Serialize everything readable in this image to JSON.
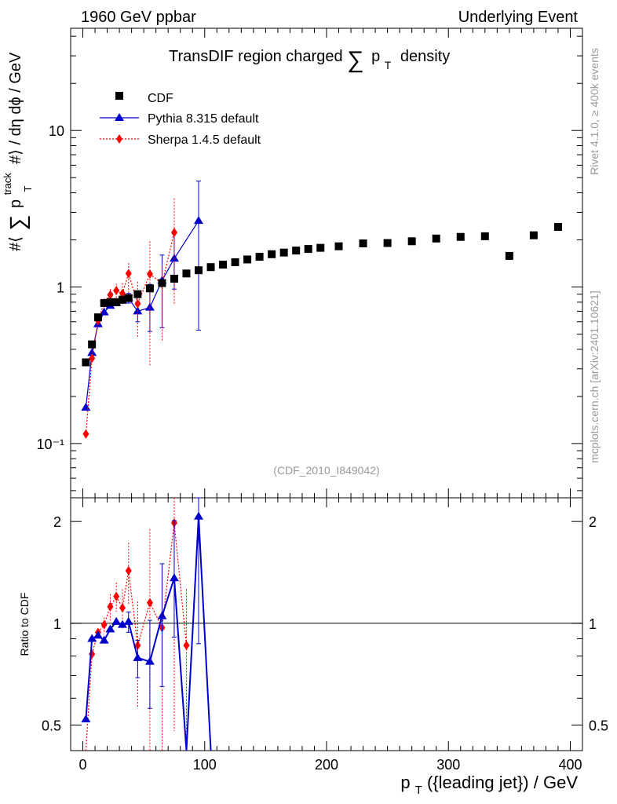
{
  "header": {
    "left": "1960 GeV ppbar",
    "right": "Underlying Event"
  },
  "side": {
    "rivet": "Rivet 4.1.0, ≥ 400k events",
    "mcplots": "mcplots.cern.ch [arXiv:2401.10621]"
  },
  "chart_data": [
    {
      "type": "scatter",
      "title_prefix": "TransDIF region charged",
      "title_sum": "∑",
      "title_p": "p",
      "title_sub": "T",
      "title_suffix": "density",
      "ylabel": "#⟨ ∑ p_T^track #⟩ / dη dϕ / GeV",
      "ylabel_pre": "#⟨",
      "ylabel_sum": "∑",
      "ylabel_p": "p",
      "ylabel_sup": "track",
      "ylabel_sub": "T",
      "ylabel_post": "#⟩ / dη dϕ / GeV",
      "yscale": "log",
      "ylim": [
        0.045,
        45
      ],
      "xlim": [
        -10,
        410
      ],
      "yticklabels": [
        "10",
        "1",
        "10⁻¹"
      ],
      "analysis": "(CDF_2010_I849042)",
      "legend": [
        "CDF",
        "Pythia 8.315 default",
        "Sherpa 1.4.5 default"
      ],
      "series": [
        {
          "name": "CDF",
          "color": "#000000",
          "marker": "square",
          "x": [
            2.5,
            7.5,
            12.5,
            17.5,
            22.5,
            27.5,
            32.5,
            37.5,
            45,
            55,
            65,
            75,
            85,
            95,
            105,
            115,
            125,
            135,
            145,
            155,
            165,
            175,
            185,
            195,
            210,
            230,
            250,
            270,
            290,
            310,
            330,
            350,
            370,
            390
          ],
          "y": [
            0.33,
            0.43,
            0.64,
            0.79,
            0.8,
            0.8,
            0.83,
            0.85,
            0.9,
            0.98,
            1.06,
            1.13,
            1.22,
            1.28,
            1.34,
            1.39,
            1.44,
            1.5,
            1.56,
            1.62,
            1.66,
            1.71,
            1.75,
            1.78,
            1.82,
            1.9,
            1.91,
            1.96,
            2.04,
            2.09,
            2.11,
            1.58,
            2.14,
            2.42
          ]
        },
        {
          "name": "Pythia 8.315 default",
          "color": "#0000cc",
          "marker": "triangle",
          "x": [
            2.5,
            7.5,
            12.5,
            17.5,
            22.5,
            27.5,
            32.5,
            37.5,
            45,
            55,
            65,
            75,
            95
          ],
          "y": [
            0.17,
            0.38,
            0.58,
            0.69,
            0.76,
            0.79,
            0.82,
            0.85,
            0.7,
            0.74,
            1.1,
            1.52,
            2.65
          ],
          "err_lo": [
            0,
            0,
            0,
            0,
            0,
            0,
            0,
            0.06,
            0.1,
            0.22,
            0.55,
            0.55,
            2.12
          ],
          "err_hi": [
            0,
            0,
            0,
            0,
            0,
            0,
            0,
            0.06,
            0.1,
            0.3,
            0.5,
            0.7,
            2.1
          ]
        },
        {
          "name": "Sherpa 1.4.5 default",
          "color": "#ff0000",
          "marker": "diamond",
          "x": [
            2.5,
            7.5,
            12.5,
            17.5,
            22.5,
            27.5,
            32.5,
            37.5,
            45,
            55,
            65,
            75
          ],
          "y": [
            0.115,
            0.35,
            0.61,
            0.79,
            0.89,
            0.95,
            0.91,
            1.22,
            0.78,
            1.21,
            1.05,
            2.23
          ],
          "err_lo": [
            0,
            0,
            0,
            0.05,
            0.08,
            0.1,
            0.15,
            0.3,
            0.3,
            0.9,
            0.6,
            1.45
          ],
          "err_hi": [
            0,
            0,
            0,
            0.05,
            0.08,
            0.1,
            0.15,
            0.2,
            0.3,
            0.75,
            0.3,
            1.45
          ]
        }
      ]
    },
    {
      "type": "line",
      "ylabel": "Ratio to CDF",
      "xlabel": "p_T({leading jet}) / GeV",
      "xlabel_p": "p",
      "xlabel_sub": "T",
      "xlabel_rest": "({leading jet}) / GeV",
      "xlim": [
        -10,
        410
      ],
      "ylim": [
        0.42,
        2.35
      ],
      "yscale": "log",
      "xticklabels": [
        "0",
        "100",
        "200",
        "300",
        "400"
      ],
      "yticklabels": [
        "2",
        "1",
        "0.5"
      ],
      "reference_line": 1,
      "series": [
        {
          "name": "Pythia 8.315 default",
          "color": "#0000cc",
          "x": [
            2.5,
            7.5,
            12.5,
            17.5,
            22.5,
            27.5,
            32.5,
            37.5,
            45,
            55,
            65,
            75,
            85,
            95,
            105
          ],
          "y": [
            0.52,
            0.9,
            0.92,
            0.89,
            0.96,
            1.01,
            0.99,
            1.01,
            0.79,
            0.77,
            1.05,
            1.36,
            0.4,
            2.07,
            0.41
          ],
          "err_lo": [
            0,
            0,
            0,
            0,
            0,
            0,
            0,
            0.07,
            0.1,
            0.21,
            0.4,
            0.45,
            0,
            1.2,
            0
          ],
          "err_hi": [
            0,
            0,
            0,
            0,
            0,
            0,
            0,
            0.07,
            0.1,
            0.25,
            0.45,
            0.65,
            0,
            0.5,
            0
          ]
        },
        {
          "name": "Sherpa 1.4.5 default",
          "color": "#ff0000",
          "x": [
            2.5,
            7.5,
            12.5,
            17.5,
            22.5,
            27.5,
            32.5,
            37.5,
            45,
            55,
            65,
            75,
            85
          ],
          "y": [
            0.36,
            0.81,
            0.94,
            0.99,
            1.12,
            1.2,
            1.11,
            1.43,
            0.86,
            1.15,
            0.97,
            1.98,
            0.86
          ],
          "err_lo": [
            0,
            0,
            0,
            0.05,
            0.1,
            0.12,
            0.15,
            0.3,
            0.3,
            0.75,
            0.6,
            1.5,
            0.4
          ],
          "err_hi": [
            0,
            0,
            0,
            0.05,
            0.1,
            0.12,
            0.15,
            0.3,
            0.3,
            0.75,
            0.5,
            1.0,
            0.4
          ]
        }
      ]
    }
  ]
}
